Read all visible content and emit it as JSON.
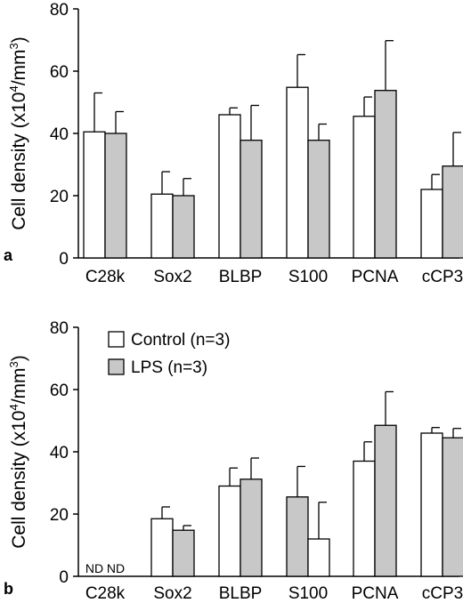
{
  "chart_data": [
    {
      "type": "bar",
      "panel_label": "a",
      "ylabel_main": "Cell density (x10",
      "ylabel_exp1": "4",
      "ylabel_mid": "/mm",
      "ylabel_exp2": "3",
      "ylabel_end": ")",
      "ylim": [
        0,
        80
      ],
      "yticks": [
        "0",
        "20",
        "40",
        "60",
        "80"
      ],
      "categories": [
        "C28k",
        "Sox2",
        "BLBP",
        "S100",
        "PCNA",
        "cCP3"
      ],
      "series": [
        {
          "name": "Control (n=3)",
          "color": "#ffffff",
          "values": [
            40.5,
            20.5,
            46,
            54.8,
            45.5,
            22
          ],
          "errors": [
            12.5,
            7.2,
            2.2,
            10.5,
            6.2,
            4.8
          ]
        },
        {
          "name": "LPS (n=3)",
          "color": "#c8c8c8",
          "values": [
            40,
            20,
            37.8,
            37.8,
            53.8,
            29.5
          ],
          "errors": [
            7,
            5.5,
            11.2,
            5.2,
            16,
            10.8
          ]
        }
      ],
      "nd_labels": [
        "",
        ""
      ]
    },
    {
      "type": "bar",
      "panel_label": "b",
      "ylabel_main": "Cell density (x10",
      "ylabel_exp1": "4",
      "ylabel_mid": "/mm",
      "ylabel_exp2": "3",
      "ylabel_end": ")",
      "ylim": [
        0,
        80
      ],
      "yticks": [
        "0",
        "20",
        "40",
        "60",
        "80"
      ],
      "categories": [
        "C28k",
        "Sox2",
        "BLBP",
        "S100",
        "PCNA",
        "cCP3"
      ],
      "series": [
        {
          "name": "Control (n=3)",
          "color": "#ffffff",
          "values": [
            null,
            18.5,
            29,
            12,
            37,
            46
          ],
          "errors": [
            null,
            3.8,
            5.8,
            11.8,
            6.2,
            1.8
          ]
        },
        {
          "name": "LPS (n=3)",
          "color": "#c8c8c8",
          "values": [
            null,
            14.8,
            31.2,
            25.5,
            48.5,
            44.5
          ],
          "errors": [
            null,
            1.5,
            6.8,
            9.8,
            10.8,
            3
          ]
        }
      ],
      "nd_labels": [
        "ND",
        "ND"
      ],
      "legend": [
        "Control (n=3)",
        "LPS (n=3)"
      ],
      "swapped_category_index": 3
    }
  ]
}
